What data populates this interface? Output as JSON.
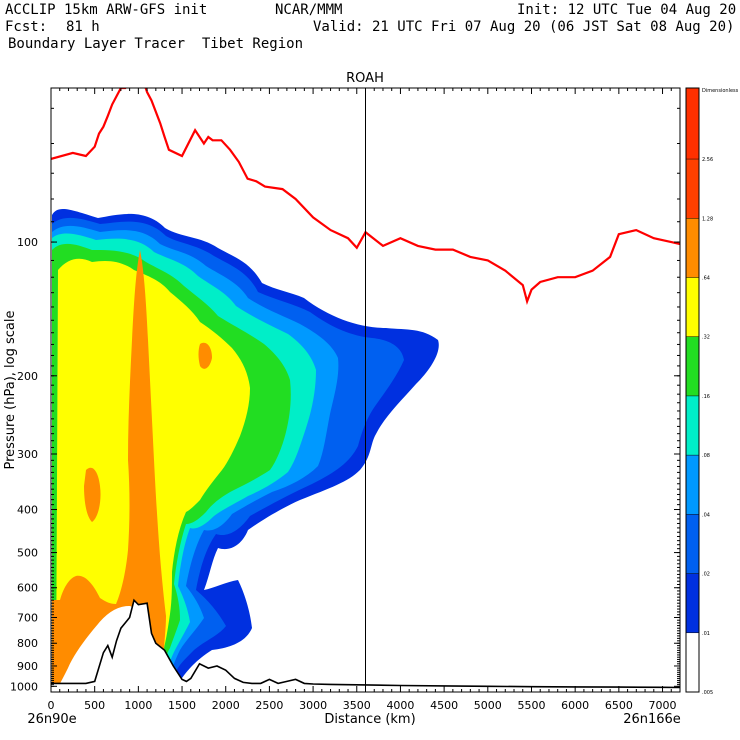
{
  "header": {
    "model": "ACCLIP 15km ARW-GFS init",
    "fcst_label": "Fcst:",
    "fcst_value": "81 h",
    "product": "Boundary Layer Tracer  Tibet Region",
    "org": "NCAR/MMM",
    "init": "Init: 12 UTC Tue 04 Aug 20",
    "valid": "Valid: 21 UTC Fri 07 Aug 20 (06 JST Sat 08 Aug 20)"
  },
  "chart_data": {
    "type": "cross-section",
    "title": "ROAH",
    "xlabel": "Distance (km)",
    "ylabel": "Pressure (hPa), log scale",
    "x_start_label": "26n90e",
    "x_end_label": "26n166e",
    "xlim": [
      0,
      7200
    ],
    "ylim": [
      1030,
      45
    ],
    "y_scale": "log",
    "x_ticks": [
      0,
      500,
      1000,
      1500,
      2000,
      2500,
      3000,
      3500,
      4000,
      4500,
      5000,
      5500,
      6000,
      6500,
      7000
    ],
    "y_ticks": [
      100,
      200,
      300,
      400,
      500,
      600,
      700,
      800,
      900,
      1000
    ],
    "marker_line_x": 3600,
    "colorbar": {
      "top_label": "Dimensionless",
      "levels": [
        "2.56",
        "1.28",
        ".64",
        ".32",
        ".16",
        ".08",
        ".04",
        ".02",
        ".01",
        ".005"
      ],
      "colors": [
        "#ff4000",
        "#ff8c00",
        "#ffff00",
        "#22dd22",
        "#00eec8",
        "#0099ff",
        "#0060f0",
        "#0030e0",
        "#ffffff",
        "#ffffff"
      ]
    },
    "tropopause_line": {
      "name": "tropopause",
      "color": "#ff0000",
      "x": [
        0,
        250,
        400,
        500,
        550,
        600,
        650,
        700,
        800,
        850,
        900,
        1000,
        1050,
        1100,
        1150,
        1250,
        1300,
        1350,
        1500,
        1650,
        1750,
        1800,
        1850,
        1950,
        2050,
        2150,
        2250,
        2350,
        2450,
        2650,
        2800,
        3000,
        3200,
        3400,
        3500,
        3600,
        3800,
        4000,
        4200,
        4400,
        4600,
        4800,
        5000,
        5200,
        5400,
        5450,
        5500,
        5600,
        5800,
        6000,
        6200,
        6400,
        6500,
        6700,
        6900,
        7100,
        7200
      ],
      "y": [
        65,
        63,
        64,
        61,
        57,
        55,
        52,
        49,
        45,
        45,
        44,
        42,
        43,
        46,
        48,
        54,
        58,
        62,
        64,
        56,
        60,
        58,
        59,
        59,
        62,
        66,
        72,
        73,
        75,
        76,
        80,
        88,
        94,
        98,
        103,
        95,
        102,
        98,
        102,
        104,
        104,
        108,
        110,
        116,
        125,
        136,
        128,
        123,
        120,
        120,
        116,
        108,
        96,
        94,
        98,
        100,
        101
      ]
    },
    "terrain_line": {
      "name": "terrain",
      "color": "#000000",
      "x": [
        0,
        200,
        400,
        500,
        600,
        650,
        700,
        750,
        800,
        900,
        950,
        1000,
        1100,
        1150,
        1200,
        1300,
        1400,
        1500,
        1550,
        1600,
        1700,
        1800,
        1900,
        2000,
        2100,
        2200,
        2300,
        2400,
        2500,
        2600,
        2700,
        2800,
        2900,
        3000,
        3200,
        3400,
        3600,
        4000,
        4500,
        5000,
        5500,
        6000,
        6500,
        7000,
        7200
      ],
      "y": [
        985,
        985,
        985,
        975,
        840,
        810,
        860,
        790,
        740,
        700,
        640,
        655,
        650,
        760,
        800,
        830,
        900,
        965,
        975,
        960,
        890,
        910,
        900,
        920,
        960,
        980,
        985,
        985,
        965,
        985,
        975,
        965,
        985,
        988,
        990,
        992,
        993,
        996,
        998,
        1000,
        1002,
        1003,
        1004,
        1005,
        1006
      ]
    }
  }
}
